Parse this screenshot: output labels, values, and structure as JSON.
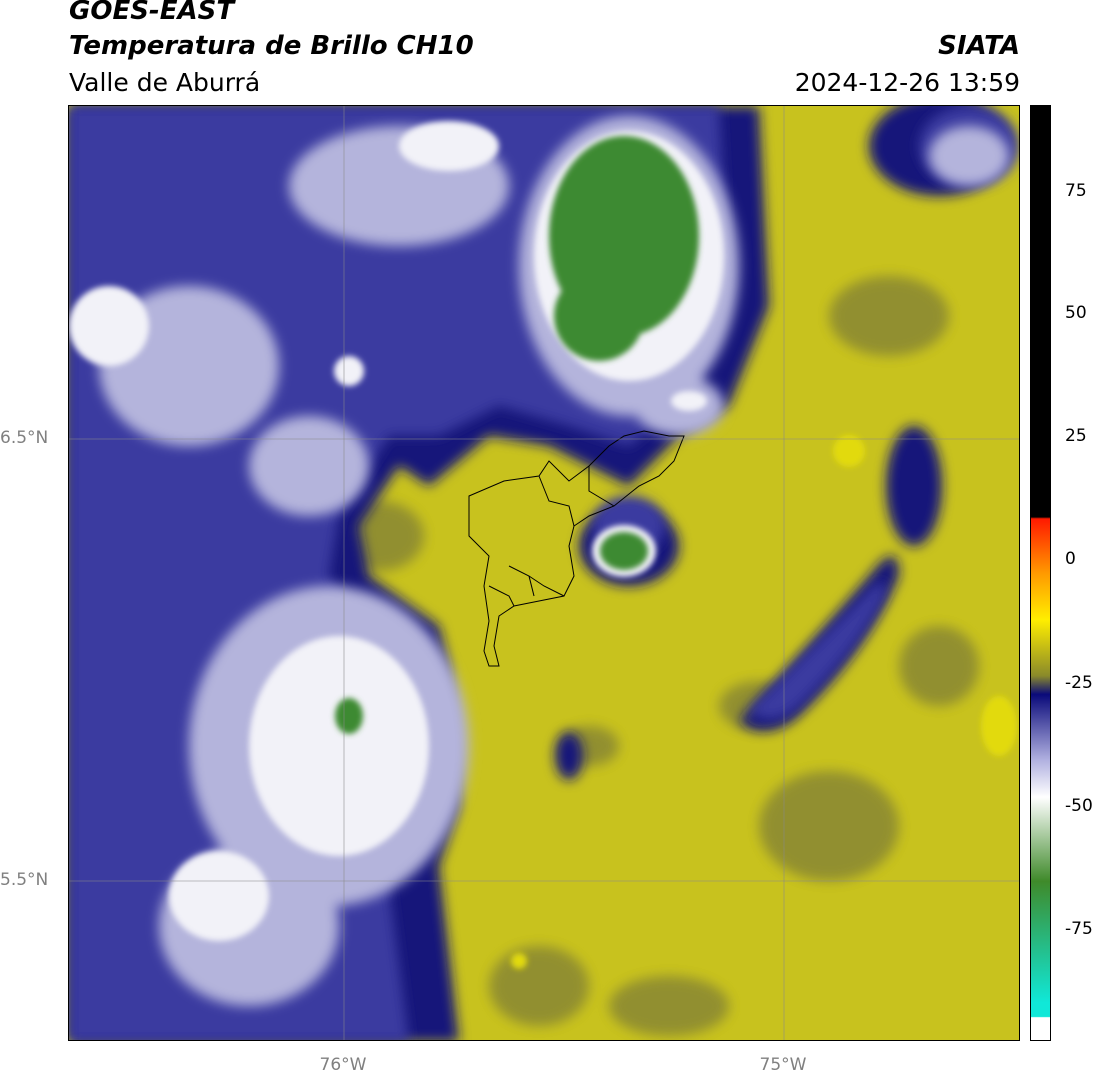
{
  "header": {
    "satellite": "GOES-EAST",
    "product": "Temperatura de Brillo CH10",
    "region": "Valle de Aburrá",
    "organization": "SIATA",
    "datetime": "2024-12-26 13:59"
  },
  "map": {
    "lat_labels": [
      "6.5°N",
      "5.5°N"
    ],
    "lon_labels": [
      "76°W",
      "75°W"
    ]
  },
  "colorbar": {
    "ticks": [
      "75",
      "50",
      "25",
      "0",
      "-25",
      "-50",
      "-75"
    ],
    "colors": {
      "black_top": "#000000",
      "red": "#ff1a00",
      "orange": "#ff9900",
      "yellow": "#ffee00",
      "olive": "#8a8a2a",
      "navy": "#0a0a7a",
      "lavender": "#b0b0e0",
      "white": "#ffffff",
      "green": "#3f8a2a",
      "cyan": "#10e8d8"
    }
  },
  "colors": {
    "field_yellow": "#c8c21e",
    "field_olive": "#8c8a32",
    "field_navy": "#14147a",
    "field_blue": "#3a3aa0",
    "field_lavender": "#b4b4dc",
    "field_white": "#f2f2f8",
    "field_green": "#3e8a30",
    "gridline": "#8a8a8a"
  }
}
